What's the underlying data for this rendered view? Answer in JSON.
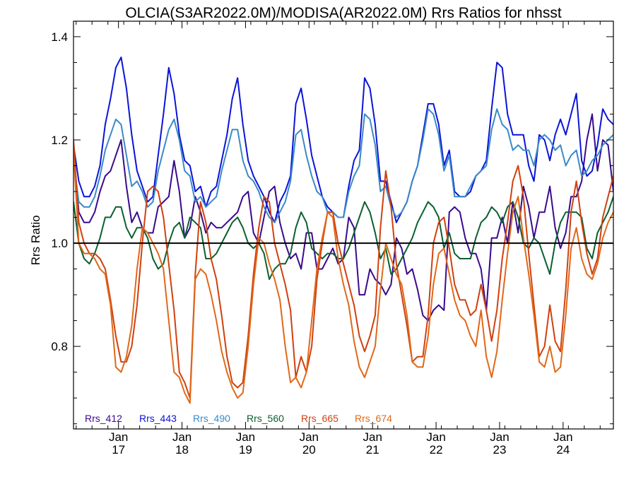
{
  "chart_data": {
    "type": "line",
    "title": "OLCIA(S3AR2022.0M)/MODISA(AR2022.0M)  Rrs Ratios for nhsst",
    "xlabel": "",
    "ylabel": "Rrs Ratio",
    "ylim": [
      0.64,
      1.43
    ],
    "yticks": [
      "0.8",
      "1.0",
      "1.2",
      "1.4"
    ],
    "xlim": [
      0,
      102
    ],
    "xticks": [
      {
        "x": 8.5,
        "month": "Jan",
        "year": "17"
      },
      {
        "x": 20.5,
        "month": "Jan",
        "year": "18"
      },
      {
        "x": 32.5,
        "month": "Jan",
        "year": "19"
      },
      {
        "x": 44.5,
        "month": "Jan",
        "year": "20"
      },
      {
        "x": 56.5,
        "month": "Jan",
        "year": "21"
      },
      {
        "x": 68.5,
        "month": "Jan",
        "year": "22"
      },
      {
        "x": 80.5,
        "month": "Jan",
        "year": "23"
      },
      {
        "x": 92.5,
        "month": "Jan",
        "year": "24"
      }
    ],
    "reference_line": 1.0,
    "legend_position": "bottom-left",
    "series": [
      {
        "name": "Rrs_412",
        "color": "#3a0a8c",
        "values": [
          1.18,
          1.06,
          1.04,
          1.04,
          1.06,
          1.1,
          1.13,
          1.14,
          1.17,
          1.2,
          1.11,
          1.04,
          1.06,
          1.03,
          1.02,
          1.02,
          1.07,
          1.08,
          1.09,
          1.16,
          1.1,
          1.01,
          1.03,
          1.09,
          1.06,
          1.02,
          1.04,
          1.03,
          1.03,
          1.04,
          1.05,
          1.06,
          1.09,
          1.1,
          1.02,
          1.0,
          1.05,
          1.1,
          1.11,
          1.04,
          1.0,
          0.97,
          0.98,
          0.95,
          1.02,
          1.02,
          0.95,
          0.95,
          0.97,
          0.99,
          0.96,
          0.97,
          1.05,
          1.03,
          0.9,
          0.9,
          0.95,
          0.93,
          0.92,
          0.9,
          0.92,
          1.01,
          0.99,
          0.94,
          0.95,
          0.91,
          0.86,
          0.85,
          0.87,
          0.88,
          0.87,
          1.06,
          1.07,
          1.06,
          1.01,
          0.98,
          0.98,
          0.95,
          0.87,
          1.01,
          1.01,
          1.05,
          1.0,
          1.08,
          1.02,
          1.11,
          1.07,
          1.01,
          1.06,
          1.06,
          1.11,
          1.03,
          0.99,
          1.02,
          1.09,
          1.09,
          1.12,
          1.2,
          1.25,
          1.14,
          1.2,
          1.19,
          1.1
        ]
      },
      {
        "name": "Rrs_443",
        "color": "#0a14d8",
        "values": [
          1.19,
          1.12,
          1.09,
          1.09,
          1.11,
          1.15,
          1.23,
          1.28,
          1.34,
          1.36,
          1.3,
          1.21,
          1.14,
          1.11,
          1.08,
          1.09,
          1.17,
          1.25,
          1.34,
          1.29,
          1.21,
          1.16,
          1.15,
          1.1,
          1.11,
          1.07,
          1.1,
          1.11,
          1.16,
          1.21,
          1.28,
          1.32,
          1.23,
          1.16,
          1.13,
          1.11,
          1.09,
          1.06,
          1.04,
          1.08,
          1.1,
          1.13,
          1.27,
          1.3,
          1.24,
          1.17,
          1.13,
          1.09,
          1.07,
          1.06,
          1.05,
          1.05,
          1.11,
          1.16,
          1.18,
          1.32,
          1.3,
          1.23,
          1.12,
          1.12,
          1.08,
          1.04,
          1.06,
          1.08,
          1.12,
          1.15,
          1.21,
          1.27,
          1.27,
          1.23,
          1.15,
          1.18,
          1.1,
          1.09,
          1.09,
          1.1,
          1.13,
          1.14,
          1.16,
          1.26,
          1.35,
          1.34,
          1.25,
          1.21,
          1.21,
          1.21,
          1.15,
          1.12,
          1.21,
          1.2,
          1.16,
          1.21,
          1.24,
          1.21,
          1.25,
          1.29,
          1.16,
          1.13,
          1.14,
          1.19,
          1.26,
          1.24,
          1.23
        ]
      },
      {
        "name": "Rrs_490",
        "color": "#3a8ac8",
        "values": [
          1.16,
          1.08,
          1.07,
          1.07,
          1.09,
          1.13,
          1.18,
          1.21,
          1.24,
          1.23,
          1.17,
          1.11,
          1.12,
          1.1,
          1.07,
          1.08,
          1.14,
          1.18,
          1.22,
          1.24,
          1.2,
          1.14,
          1.13,
          1.08,
          1.09,
          1.07,
          1.08,
          1.09,
          1.14,
          1.18,
          1.22,
          1.22,
          1.16,
          1.13,
          1.12,
          1.1,
          1.07,
          1.05,
          1.04,
          1.06,
          1.08,
          1.12,
          1.21,
          1.22,
          1.17,
          1.13,
          1.1,
          1.09,
          1.06,
          1.06,
          1.05,
          1.05,
          1.1,
          1.13,
          1.15,
          1.25,
          1.24,
          1.19,
          1.1,
          1.11,
          1.07,
          1.05,
          1.06,
          1.08,
          1.12,
          1.15,
          1.2,
          1.26,
          1.25,
          1.21,
          1.14,
          1.17,
          1.09,
          1.09,
          1.09,
          1.11,
          1.13,
          1.14,
          1.15,
          1.22,
          1.26,
          1.23,
          1.22,
          1.18,
          1.19,
          1.18,
          1.18,
          1.15,
          1.2,
          1.21,
          1.2,
          1.18,
          1.19,
          1.15,
          1.17,
          1.18,
          1.13,
          1.14,
          1.16,
          1.17,
          1.19,
          1.2,
          1.21
        ]
      },
      {
        "name": "Rrs_560",
        "color": "#0a6030",
        "values": [
          1.08,
          1.0,
          0.97,
          0.96,
          0.98,
          1.01,
          1.05,
          1.05,
          1.07,
          1.07,
          1.03,
          1.01,
          1.03,
          1.03,
          1.01,
          0.97,
          0.95,
          0.96,
          1.0,
          1.03,
          1.04,
          1.01,
          1.05,
          1.04,
          1.03,
          0.97,
          0.97,
          0.98,
          1.0,
          1.02,
          1.04,
          1.05,
          1.03,
          1.0,
          0.99,
          1.0,
          0.98,
          0.93,
          0.95,
          0.96,
          0.96,
          0.98,
          1.03,
          1.06,
          1.04,
          0.99,
          0.98,
          0.97,
          0.98,
          0.98,
          0.97,
          0.97,
          0.99,
          1.02,
          1.05,
          1.08,
          1.06,
          1.02,
          0.97,
          0.99,
          0.94,
          0.95,
          0.97,
          0.99,
          1.01,
          1.04,
          1.06,
          1.08,
          1.07,
          1.05,
          0.99,
          1.02,
          0.98,
          0.97,
          0.97,
          0.97,
          1.01,
          1.04,
          1.05,
          1.07,
          1.06,
          1.04,
          1.07,
          1.08,
          1.05,
          1.0,
          0.99,
          1.01,
          1.0,
          0.97,
          0.94,
          1.0,
          1.04,
          1.06,
          1.06,
          1.06,
          1.05,
          0.99,
          0.97,
          1.02,
          1.04,
          1.06,
          1.09
        ]
      },
      {
        "name": "Rrs_665",
        "color": "#d04010",
        "values": [
          1.2,
          1.04,
          1.0,
          0.98,
          0.98,
          0.97,
          0.95,
          0.89,
          0.82,
          0.77,
          0.77,
          0.8,
          0.88,
          1.0,
          1.1,
          1.11,
          1.1,
          1.05,
          0.96,
          0.87,
          0.75,
          0.73,
          0.7,
          0.94,
          1.08,
          1.04,
          0.97,
          0.93,
          0.86,
          0.78,
          0.73,
          0.72,
          0.73,
          0.82,
          0.94,
          1.03,
          1.09,
          1.08,
          1.0,
          0.96,
          0.92,
          0.87,
          0.74,
          0.78,
          0.75,
          0.8,
          0.93,
          1.0,
          1.06,
          1.06,
          1.0,
          0.96,
          0.92,
          0.88,
          0.82,
          0.79,
          0.82,
          0.86,
          1.03,
          1.14,
          1.07,
          0.96,
          0.9,
          0.84,
          0.77,
          0.78,
          0.78,
          0.86,
          1.0,
          1.04,
          1.05,
          0.99,
          0.92,
          0.89,
          0.89,
          0.86,
          0.87,
          0.92,
          0.87,
          0.81,
          0.87,
          0.97,
          1.04,
          1.12,
          1.15,
          1.09,
          0.98,
          0.88,
          0.78,
          0.8,
          0.88,
          0.81,
          0.79,
          0.91,
          1.06,
          1.12,
          1.04,
          0.98,
          0.94,
          0.97,
          1.05,
          1.09,
          1.13
        ]
      },
      {
        "name": "Rrs_674",
        "color": "#e06818",
        "values": [
          1.18,
          1.0,
          0.98,
          0.98,
          0.97,
          0.95,
          0.94,
          0.88,
          0.76,
          0.75,
          0.78,
          0.84,
          0.95,
          1.03,
          1.02,
          1.0,
          0.98,
          0.95,
          0.85,
          0.75,
          0.74,
          0.71,
          0.69,
          0.93,
          0.95,
          0.94,
          0.9,
          0.85,
          0.79,
          0.75,
          0.72,
          0.7,
          0.71,
          0.8,
          0.92,
          1.01,
          1.0,
          0.96,
          0.93,
          0.89,
          0.8,
          0.73,
          0.74,
          0.72,
          0.75,
          0.85,
          0.95,
          1.01,
          1.06,
          1.05,
          0.97,
          0.92,
          0.88,
          0.81,
          0.76,
          0.74,
          0.77,
          0.8,
          0.91,
          1.0,
          0.97,
          0.94,
          0.92,
          0.86,
          0.77,
          0.76,
          0.76,
          0.82,
          0.92,
          0.98,
          0.99,
          0.94,
          0.89,
          0.86,
          0.85,
          0.82,
          0.8,
          0.87,
          0.78,
          0.74,
          0.79,
          0.89,
          0.98,
          1.06,
          1.09,
          1.01,
          0.94,
          0.86,
          0.77,
          0.76,
          0.8,
          0.75,
          0.76,
          0.86,
          0.99,
          1.03,
          0.97,
          0.94,
          0.93,
          0.96,
          1.01,
          1.04,
          1.06
        ]
      }
    ]
  }
}
